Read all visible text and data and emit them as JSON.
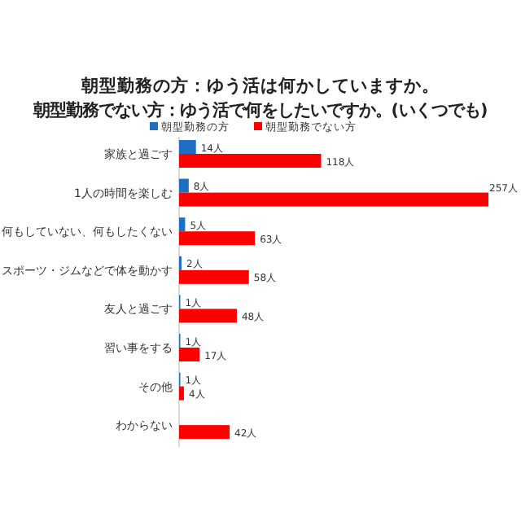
{
  "chart_data": {
    "type": "bar",
    "orientation": "horizontal",
    "title": "朝型勤務の方：ゆう活は何かしていますか。",
    "subtitle": "朝型勤務でない方：ゆう活で何をしたいですか。(いくつでも)",
    "categories": [
      "家族と過ごす",
      "1人の時間を楽しむ",
      "何もしていない、何もしたくない",
      "スポーツ・ジムなどで体を動かす",
      "友人と過ごす",
      "習い事をする",
      "その他",
      "わからない"
    ],
    "legend": "top",
    "series": [
      {
        "name": "朝型勤務の方",
        "color": "#1f6fc5",
        "values": [
          14,
          8,
          5,
          2,
          1,
          1,
          1,
          null
        ],
        "value_labels": [
          "14人",
          "8人",
          "5人",
          "2人",
          "1人",
          "1人",
          "1人",
          null
        ]
      },
      {
        "name": "朝型勤務でない方",
        "color": "#ff0000",
        "values": [
          118,
          257,
          63,
          58,
          48,
          17,
          4,
          42
        ],
        "value_labels": [
          "118人",
          "257人",
          "63人",
          "58人",
          "48人",
          "17人",
          "4人",
          "42人"
        ]
      }
    ]
  }
}
